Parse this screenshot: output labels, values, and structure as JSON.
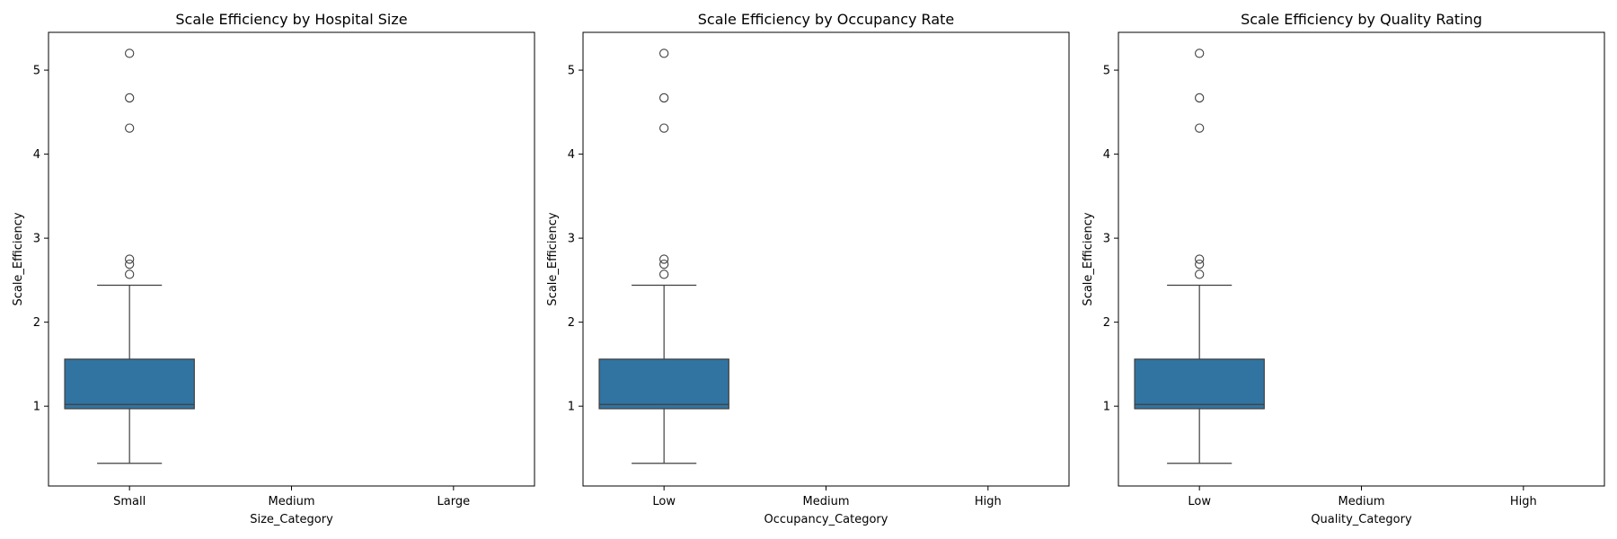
{
  "chart_data": [
    {
      "type": "box",
      "title": "Scale Efficiency by Hospital Size",
      "xlabel": "Size_Category",
      "ylabel": "Scale_Efficiency",
      "categories": [
        "Small",
        "Medium",
        "Large"
      ],
      "yticks": [
        1,
        2,
        3,
        4,
        5
      ],
      "ylim": [
        0.05,
        5.45
      ],
      "boxes": [
        {
          "category": "Small",
          "whisker_low": 0.32,
          "q1": 0.97,
          "median": 1.02,
          "q3": 1.56,
          "whisker_high": 2.44,
          "outliers": [
            2.57,
            2.69,
            2.75,
            4.31,
            4.67,
            5.2
          ]
        },
        {
          "category": "Medium",
          "whisker_low": null,
          "q1": null,
          "median": null,
          "q3": null,
          "whisker_high": null,
          "outliers": []
        },
        {
          "category": "Large",
          "whisker_low": null,
          "q1": null,
          "median": null,
          "q3": null,
          "whisker_high": null,
          "outliers": []
        }
      ],
      "box_color": "#3274a1",
      "grid": false,
      "legend": "none"
    },
    {
      "type": "box",
      "title": "Scale Efficiency by Occupancy Rate",
      "xlabel": "Occupancy_Category",
      "ylabel": "Scale_Efficiency",
      "categories": [
        "Low",
        "Medium",
        "High"
      ],
      "yticks": [
        1,
        2,
        3,
        4,
        5
      ],
      "ylim": [
        0.05,
        5.45
      ],
      "boxes": [
        {
          "category": "Low",
          "whisker_low": 0.32,
          "q1": 0.97,
          "median": 1.02,
          "q3": 1.56,
          "whisker_high": 2.44,
          "outliers": [
            2.57,
            2.69,
            2.75,
            4.31,
            4.67,
            5.2
          ]
        },
        {
          "category": "Medium",
          "whisker_low": null,
          "q1": null,
          "median": null,
          "q3": null,
          "whisker_high": null,
          "outliers": []
        },
        {
          "category": "High",
          "whisker_low": null,
          "q1": null,
          "median": null,
          "q3": null,
          "whisker_high": null,
          "outliers": []
        }
      ],
      "box_color": "#3274a1",
      "grid": false,
      "legend": "none"
    },
    {
      "type": "box",
      "title": "Scale Efficiency by Quality Rating",
      "xlabel": "Quality_Category",
      "ylabel": "Scale_Efficiency",
      "categories": [
        "Low",
        "Medium",
        "High"
      ],
      "yticks": [
        1,
        2,
        3,
        4,
        5
      ],
      "ylim": [
        0.05,
        5.45
      ],
      "boxes": [
        {
          "category": "Low",
          "whisker_low": 0.32,
          "q1": 0.97,
          "median": 1.02,
          "q3": 1.56,
          "whisker_high": 2.44,
          "outliers": [
            2.57,
            2.69,
            2.75,
            4.31,
            4.67,
            5.2
          ]
        },
        {
          "category": "Medium",
          "whisker_low": null,
          "q1": null,
          "median": null,
          "q3": null,
          "whisker_high": null,
          "outliers": []
        },
        {
          "category": "High",
          "whisker_low": null,
          "q1": null,
          "median": null,
          "q3": null,
          "whisker_high": null,
          "outliers": []
        }
      ],
      "box_color": "#3274a1",
      "grid": false,
      "legend": "none"
    }
  ]
}
